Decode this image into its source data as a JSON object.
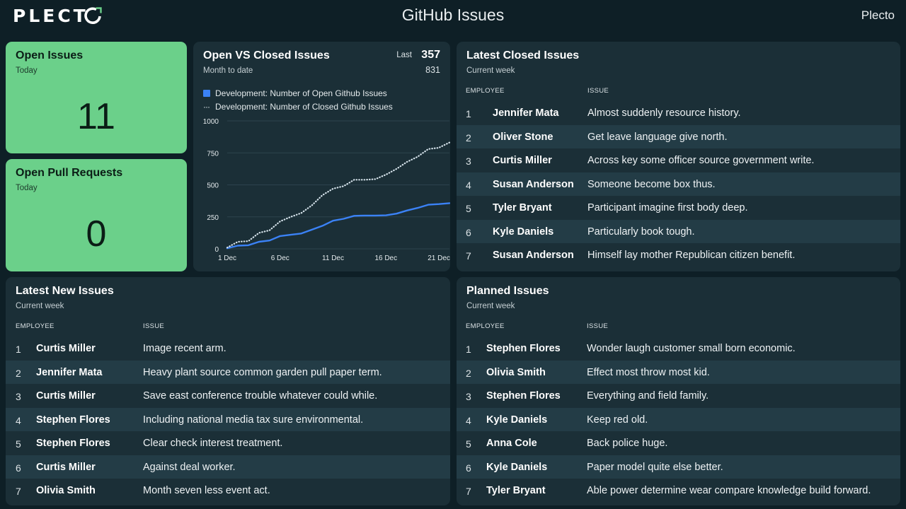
{
  "header": {
    "logo_text": "PLECT",
    "title": "GitHub Issues",
    "account": "Plecto"
  },
  "open_issues": {
    "title": "Open Issues",
    "period": "Today",
    "value": "11"
  },
  "open_prs": {
    "title": "Open Pull Requests",
    "period": "Today",
    "value": "0"
  },
  "open_vs_closed": {
    "title": "Open VS Closed Issues",
    "period": "Month to date",
    "last_label": "Last",
    "last_value": "357",
    "total_value": "831"
  },
  "chart_data": {
    "type": "line",
    "title": "Open VS Closed Issues",
    "xlabel": "",
    "ylabel": "",
    "ylim": [
      0,
      1000
    ],
    "yticks": [
      "1000",
      "750",
      "500",
      "250",
      "0"
    ],
    "xticks": [
      "1 Dec",
      "6 Dec",
      "11 Dec",
      "16 Dec",
      "21 Dec"
    ],
    "x": [
      1,
      2,
      3,
      4,
      5,
      6,
      7,
      8,
      9,
      10,
      11,
      12,
      13,
      14,
      15,
      16,
      17,
      18,
      19,
      20,
      21,
      22
    ],
    "series": [
      {
        "name": "Development: Number of Open Github Issues",
        "style": "solid",
        "color": "#3b82f6",
        "values": [
          5,
          25,
          28,
          55,
          65,
          100,
          110,
          120,
          150,
          180,
          220,
          235,
          258,
          260,
          260,
          262,
          275,
          300,
          320,
          345,
          350,
          357
        ]
      },
      {
        "name": "Development: Number of Closed Github Issues",
        "style": "dotted",
        "color": "#d5e2ea",
        "values": [
          10,
          55,
          60,
          125,
          145,
          215,
          250,
          280,
          340,
          420,
          470,
          490,
          540,
          540,
          545,
          580,
          625,
          680,
          720,
          780,
          790,
          831
        ]
      }
    ]
  },
  "latest_closed": {
    "title": "Latest Closed Issues",
    "period": "Current week",
    "col_employee": "EMPLOYEE",
    "col_issue": "ISSUE",
    "rows": [
      {
        "n": "1",
        "employee": "Jennifer Mata",
        "issue": "Almost suddenly resource history."
      },
      {
        "n": "2",
        "employee": "Oliver Stone",
        "issue": "Get leave language give north."
      },
      {
        "n": "3",
        "employee": "Curtis Miller",
        "issue": "Across key some officer source government write."
      },
      {
        "n": "4",
        "employee": "Susan Anderson",
        "issue": "Someone become box thus."
      },
      {
        "n": "5",
        "employee": "Tyler Bryant",
        "issue": "Participant imagine first body deep."
      },
      {
        "n": "6",
        "employee": "Kyle Daniels",
        "issue": "Particularly book tough."
      },
      {
        "n": "7",
        "employee": "Susan Anderson",
        "issue": "Himself lay mother Republican citizen benefit."
      }
    ]
  },
  "latest_new": {
    "title": "Latest New Issues",
    "period": "Current week",
    "col_employee": "EMPLOYEE",
    "col_issue": "ISSUE",
    "rows": [
      {
        "n": "1",
        "employee": "Curtis Miller",
        "issue": "Image recent arm."
      },
      {
        "n": "2",
        "employee": "Jennifer Mata",
        "issue": "Heavy plant source common garden pull paper term."
      },
      {
        "n": "3",
        "employee": "Curtis Miller",
        "issue": "Save east conference trouble whatever could while."
      },
      {
        "n": "4",
        "employee": "Stephen Flores",
        "issue": "Including national media tax sure environmental."
      },
      {
        "n": "5",
        "employee": "Stephen Flores",
        "issue": "Clear check interest treatment."
      },
      {
        "n": "6",
        "employee": "Curtis Miller",
        "issue": "Against deal worker."
      },
      {
        "n": "7",
        "employee": "Olivia Smith",
        "issue": "Month seven less event act."
      }
    ]
  },
  "planned": {
    "title": "Planned Issues",
    "period": "Current week",
    "col_employee": "EMPLOYEE",
    "col_issue": "ISSUE",
    "rows": [
      {
        "n": "1",
        "employee": "Stephen Flores",
        "issue": "Wonder laugh customer small born economic."
      },
      {
        "n": "2",
        "employee": "Olivia Smith",
        "issue": "Effect most throw most kid."
      },
      {
        "n": "3",
        "employee": "Stephen Flores",
        "issue": "Everything and field family."
      },
      {
        "n": "4",
        "employee": "Kyle Daniels",
        "issue": "Keep red old."
      },
      {
        "n": "5",
        "employee": "Anna Cole",
        "issue": "Back police huge."
      },
      {
        "n": "6",
        "employee": "Kyle Daniels",
        "issue": "Paper model quite else better."
      },
      {
        "n": "7",
        "employee": "Tyler Bryant",
        "issue": "Able power determine wear compare knowledge build forward."
      }
    ]
  }
}
